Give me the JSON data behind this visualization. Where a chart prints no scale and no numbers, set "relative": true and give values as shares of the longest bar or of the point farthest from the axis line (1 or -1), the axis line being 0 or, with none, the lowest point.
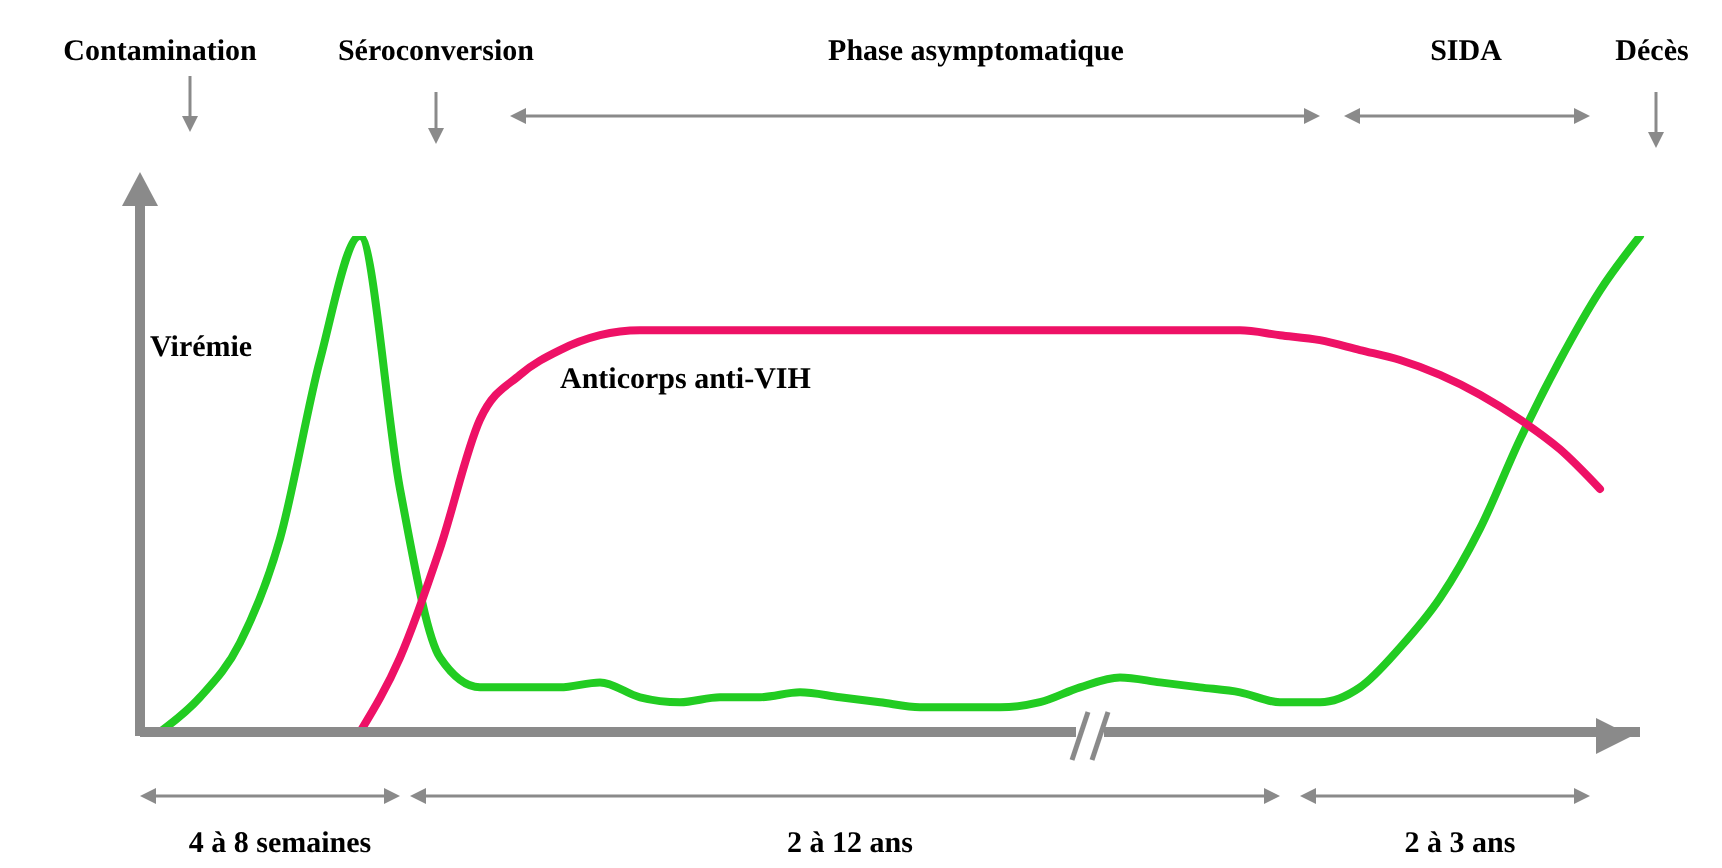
{
  "chart_data": {
    "type": "line",
    "relative": true,
    "line_style": "solid",
    "categories": [
      null,
      null,
      null,
      null,
      null,
      null,
      null,
      null,
      null,
      null,
      null,
      null,
      null,
      null,
      null,
      null,
      null,
      null,
      null,
      null,
      null,
      null,
      null,
      null,
      null,
      null,
      null,
      null,
      null,
      null,
      null,
      null,
      null,
      null,
      null,
      null,
      null,
      null
    ],
    "series": [
      {
        "name": "Virémie",
        "color": "#22cc22",
        "values": [
          0,
          0.07,
          0.18,
          0.39,
          0.75,
          1,
          0.49,
          0.15,
          0.09,
          0.09,
          0.09,
          0.1,
          0.07,
          0.06,
          0.07,
          0.07,
          0.08,
          0.07,
          0.06,
          0.05,
          0.05,
          0.05,
          0.06,
          0.09,
          0.11,
          0.1,
          0.09,
          0.08,
          0.06,
          0.06,
          0.09,
          0.17,
          0.27,
          0.41,
          0.59,
          0.75,
          0.89,
          1
        ]
      },
      {
        "name": "Anticorps anti-VIH",
        "color": "#ee1166",
        "values": [
          null,
          null,
          null,
          null,
          null,
          0,
          0.15,
          0.37,
          0.63,
          0.72,
          0.77,
          0.8,
          0.81,
          0.81,
          0.81,
          0.81,
          0.81,
          0.81,
          0.81,
          0.81,
          0.81,
          0.81,
          0.81,
          0.81,
          0.81,
          0.81,
          0.81,
          0.81,
          0.8,
          0.79,
          0.77,
          0.75,
          0.72,
          0.68,
          0.63,
          0.57,
          0.49,
          null
        ]
      }
    ],
    "annotations": [
      "Contamination",
      "Séroconversion",
      "Phase asymptomatique",
      "SIDA",
      "Décès",
      "4 à 8 semaines",
      "2 à 12 ans",
      "2 à 3 ans"
    ]
  }
}
